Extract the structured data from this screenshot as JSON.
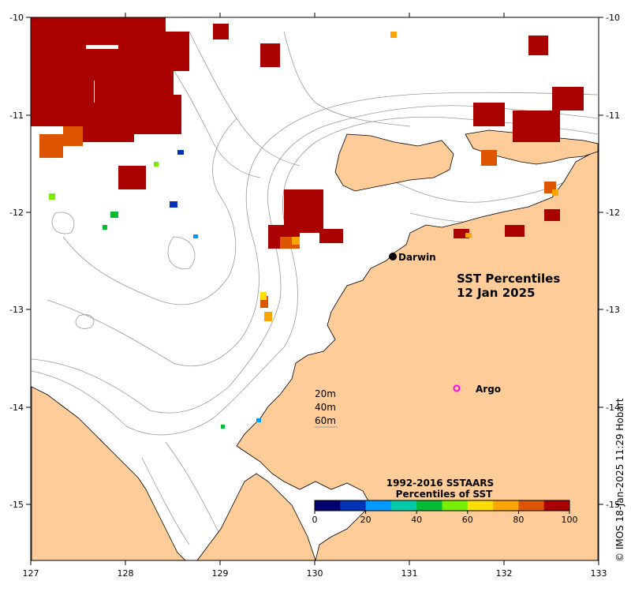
{
  "map": {
    "title_line1": "SST Percentiles",
    "title_line2": "12 Jan 2025",
    "lon_range": [
      127,
      133
    ],
    "lat_range": [
      -15.6,
      -10
    ],
    "x_ticks": [
      "127",
      "128",
      "129",
      "130",
      "131",
      "132",
      "133"
    ],
    "y_ticks": [
      "-10",
      "-11",
      "-12",
      "-13",
      "-14",
      "-15"
    ],
    "land_color": "#fdcc99",
    "sea_color": "#ffffff",
    "contour_color": "#9a9a9a"
  },
  "places": {
    "darwin": {
      "label": "Darwin",
      "lon": 130.84,
      "lat": -12.46
    },
    "argo": {
      "label": "Argo",
      "lon": 131.5,
      "lat": -13.82,
      "marker_color": "#ff00ff"
    }
  },
  "depth_legend": [
    "20m",
    "40m",
    "60m"
  ],
  "colorbar": {
    "title_line1": "1992-2016 SSTAARS",
    "title_line2": "Percentiles of SST",
    "tick_labels": [
      "0",
      "20",
      "40",
      "60",
      "80",
      "100"
    ],
    "colors": [
      "#00006e",
      "#0033b3",
      "#0099ff",
      "#00ccaa",
      "#00bb33",
      "#77ee00",
      "#ffdd00",
      "#ffa500",
      "#dd5500",
      "#aa0000"
    ]
  },
  "credit": "© IMOS 18-Jan-2025 11:29 Hobart"
}
